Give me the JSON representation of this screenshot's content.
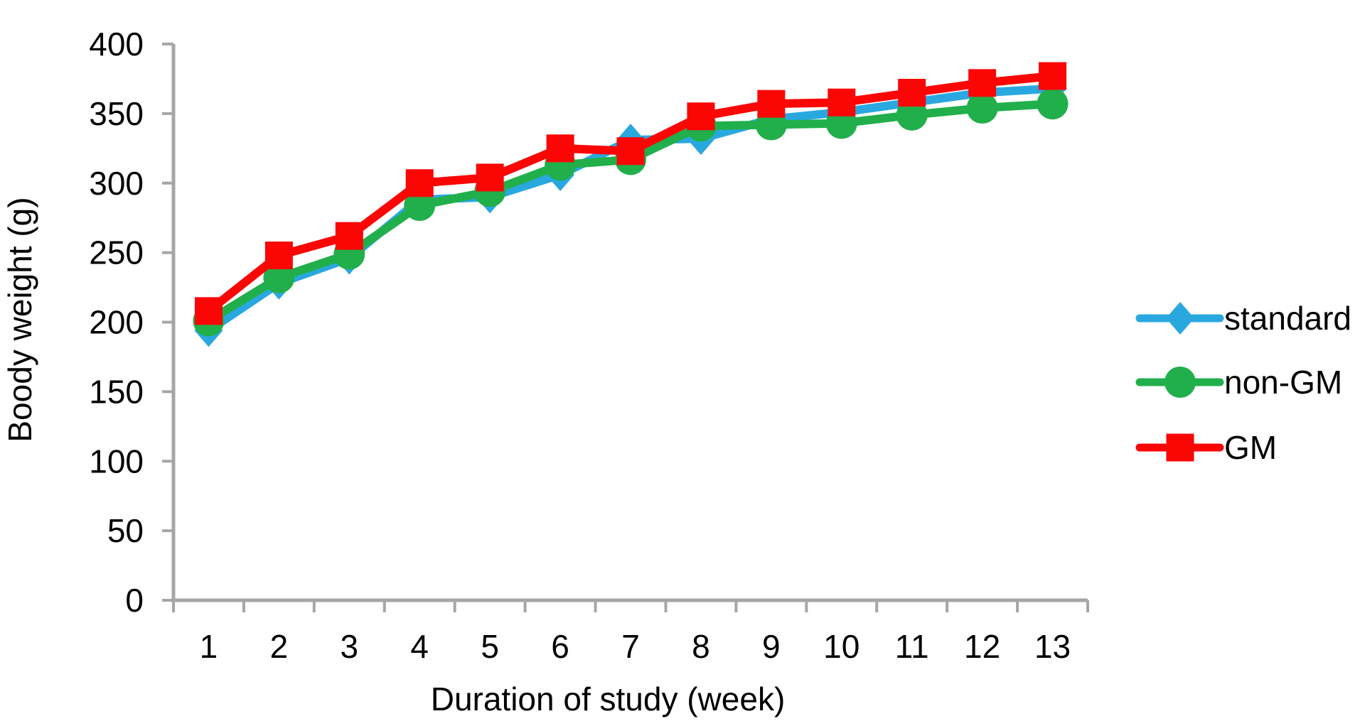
{
  "figure": {
    "background": "#FFFFFF",
    "text_color": "#000000",
    "axis_color": "#A6A6A6"
  },
  "chart_data": {
    "type": "line",
    "title": "",
    "xlabel": "Duration of study (week)",
    "ylabel": "Boody weight (g)",
    "categories": [
      "1",
      "2",
      "3",
      "4",
      "5",
      "6",
      "7",
      "8",
      "9",
      "10",
      "11",
      "12",
      "13"
    ],
    "series": [
      {
        "name": "standard",
        "marker": "diamond",
        "color": "#29A8E0",
        "values": [
          194,
          228,
          246,
          288,
          290,
          306,
          331,
          332,
          346,
          351,
          358,
          365,
          368
        ]
      },
      {
        "name": "non-GM",
        "marker": "circle",
        "color": "#21AF4B",
        "values": [
          201,
          232,
          249,
          284,
          294,
          313,
          317,
          341,
          342,
          343,
          349,
          354,
          357
        ]
      },
      {
        "name": "GM",
        "marker": "square",
        "color": "#FB0505",
        "values": [
          208,
          248,
          262,
          300,
          304,
          325,
          323,
          348,
          357,
          358,
          365,
          372,
          377
        ]
      }
    ],
    "ylim": [
      0,
      400
    ],
    "y_ticks": [
      0,
      50,
      100,
      150,
      200,
      250,
      300,
      350,
      400
    ],
    "y_tick_labels": [
      "0",
      "50",
      "100",
      "150",
      "200",
      "250",
      "300",
      "350",
      "400"
    ],
    "grid": false,
    "legend_position": "right",
    "legend_entries": [
      "standard",
      "non-GM",
      "GM"
    ]
  }
}
